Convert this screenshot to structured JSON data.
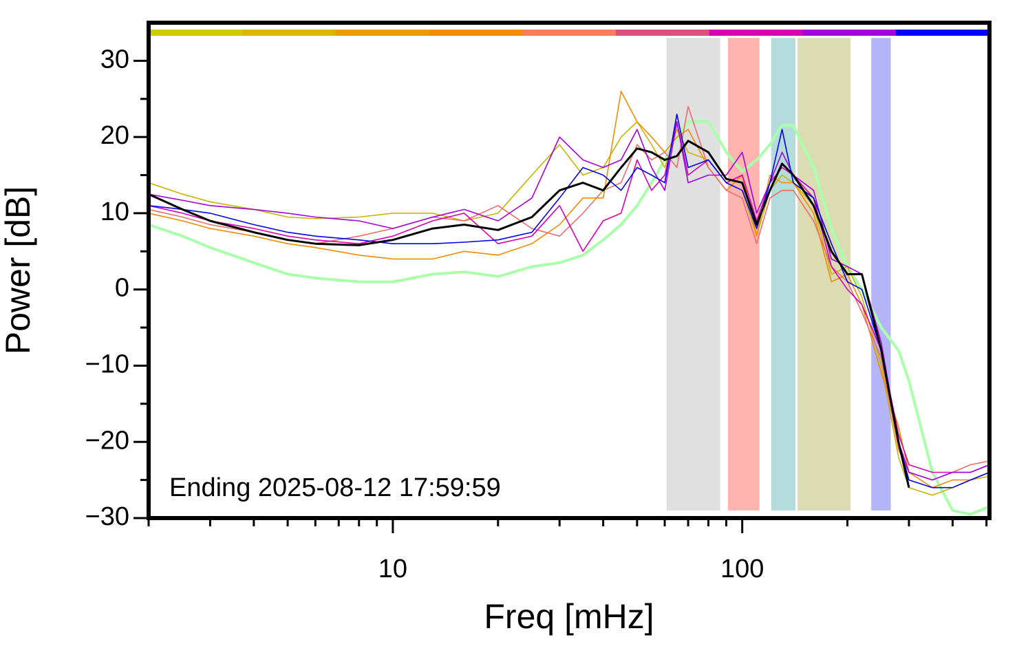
{
  "chart_data": {
    "type": "line",
    "annotation": "Ending 2025-08-12 17:59:59",
    "xlabel": "Freq [mHz]",
    "ylabel": "Power [dB]",
    "xscale": "log",
    "xlim": [
      2,
      510
    ],
    "xticks": [
      10,
      100
    ],
    "xminor": [
      2,
      3,
      4,
      5,
      6,
      7,
      8,
      9,
      20,
      30,
      40,
      50,
      60,
      70,
      80,
      90,
      200,
      300,
      400,
      500
    ],
    "ylim": [
      -30,
      35
    ],
    "yticks": [
      {
        "value": -30,
        "label": "−30"
      },
      {
        "value": -20,
        "label": "−20"
      },
      {
        "value": -10,
        "label": "−10"
      },
      0,
      10,
      20,
      30
    ],
    "yminor": [
      -25,
      -15,
      -5,
      5,
      15,
      25
    ],
    "top_bar_colors": [
      "#cccc00",
      "#d8b800",
      "#ec9c00",
      "#f48c00",
      "#fc7c60",
      "#dc5080",
      "#d800b0",
      "#a400dc",
      "#0000ff"
    ],
    "band_range": [
      -29,
      33
    ],
    "bands": [
      {
        "x0": 60.7,
        "x1": 86.5,
        "color": "#e0e0e0"
      },
      {
        "x0": 91,
        "x1": 112,
        "color": "#ffb4b0"
      },
      {
        "x0": 121,
        "x1": 142,
        "color": "#b4dcdc"
      },
      {
        "x0": 144,
        "x1": 204,
        "color": "#dcdcb4"
      },
      {
        "x0": 234,
        "x1": 266,
        "color": "#b4b4f8"
      }
    ],
    "x": [
      2,
      2.5,
      3,
      4,
      5,
      6,
      8,
      10,
      13,
      16,
      20,
      25,
      30,
      35,
      40,
      45,
      50,
      55,
      60,
      65,
      70,
      80,
      90,
      100,
      110,
      120,
      130,
      140,
      160,
      180,
      200,
      220,
      250,
      280,
      300,
      350,
      400,
      450,
      510
    ],
    "series": [
      {
        "color": "#aaffaa",
        "line_width": 4,
        "values": [
          8.5,
          7,
          5.5,
          3.5,
          2,
          1.5,
          1,
          1,
          2,
          2.3,
          1.7,
          3,
          3.5,
          4.5,
          6.5,
          8.5,
          11,
          14,
          17,
          20,
          22,
          22,
          18,
          15.5,
          17,
          19,
          21.5,
          21.5,
          16,
          8,
          3,
          0,
          -5,
          -8,
          -12,
          -24,
          -29,
          -29.5,
          -28.5
        ]
      },
      {
        "color": "#c8b400",
        "line_width": 1.6,
        "values": [
          14,
          12.5,
          11.5,
          10.5,
          9.5,
          9.3,
          9.5,
          10,
          10,
          9,
          10,
          15,
          19,
          15,
          16,
          20,
          22,
          19,
          16,
          21,
          18,
          17,
          14,
          13,
          7,
          13,
          15,
          14,
          11,
          2,
          3,
          -1,
          -10,
          -22,
          -26,
          -27,
          -26,
          -25,
          -24.5
        ]
      },
      {
        "color": "#f08c00",
        "line_width": 1.6,
        "values": [
          10,
          9,
          8,
          7,
          6,
          5.5,
          4.5,
          4,
          4,
          5,
          4.5,
          6,
          8.5,
          12,
          12,
          26,
          22,
          20,
          18,
          20,
          21,
          16,
          13,
          15,
          7,
          15,
          14,
          14,
          10,
          1,
          2,
          -2,
          -11,
          -18,
          -24,
          -26,
          -25,
          -25,
          -24
        ]
      },
      {
        "color": "#ec6c6c",
        "line_width": 1.6,
        "values": [
          10.5,
          9.5,
          8.5,
          7.5,
          6.5,
          6,
          7,
          8,
          9.5,
          9,
          11,
          8,
          7,
          10,
          13,
          14,
          19,
          17,
          18,
          16,
          24,
          16,
          13,
          12,
          6,
          12,
          13,
          13,
          9,
          3,
          1,
          -3,
          -9,
          -21,
          -24,
          -25,
          -24,
          -23,
          -22.5
        ]
      },
      {
        "color": "#d800b0",
        "line_width": 1.6,
        "values": [
          11,
          10,
          9,
          8,
          7,
          6.5,
          6,
          7,
          9,
          10,
          6,
          7,
          11,
          5,
          9,
          10,
          17,
          13,
          15,
          22,
          15,
          17,
          14,
          15,
          9,
          14,
          16,
          15,
          12,
          3,
          0,
          -2,
          -8,
          -19,
          -23,
          -24,
          -24,
          -24,
          -23
        ]
      },
      {
        "color": "#a400dc",
        "line_width": 1.6,
        "values": [
          12.5,
          11.7,
          11,
          10.5,
          10,
          9.5,
          9,
          8,
          9.5,
          10.5,
          9,
          12,
          20,
          17,
          16,
          17,
          21,
          16,
          13,
          22,
          14,
          15,
          15,
          18,
          10,
          14,
          18,
          15,
          13,
          4,
          3,
          2,
          -7,
          -20,
          -24,
          -25,
          -24,
          -24,
          -23
        ]
      },
      {
        "color": "#0000ee",
        "line_width": 1.6,
        "values": [
          11,
          10.5,
          10,
          8.5,
          7.5,
          7,
          6.5,
          6,
          6,
          6.2,
          6.5,
          7.5,
          12,
          16,
          15,
          13,
          16,
          15,
          14,
          23,
          16,
          17,
          14,
          13,
          8,
          14,
          21,
          14,
          12,
          6,
          1,
          0,
          -8,
          -20,
          -25,
          -26,
          -26,
          -25,
          -24
        ]
      },
      {
        "color": "#000000",
        "line_width": 3,
        "values": [
          12.5,
          10.5,
          9,
          7.5,
          6.5,
          6,
          5.8,
          6.5,
          8,
          8.5,
          7.8,
          9.5,
          13,
          14,
          13,
          16,
          18.5,
          18,
          17,
          17.5,
          19.5,
          18,
          14.5,
          14,
          8.5,
          13,
          16.5,
          15,
          11,
          5,
          2,
          2,
          -8,
          -20,
          -26,
          null,
          null,
          null,
          null
        ]
      }
    ]
  }
}
